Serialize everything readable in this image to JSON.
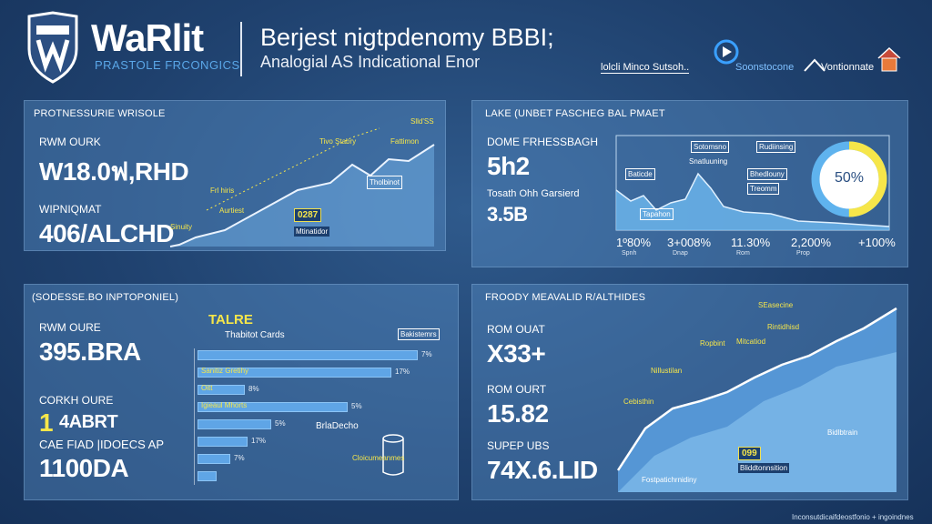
{
  "header": {
    "brand_name": "WaRlit",
    "brand_tagline": "PRASTOLE FRCONGICS",
    "title": "Berjest nigtpdenomy BBBI;",
    "subtitle": "Analogial AS Indicational Enor",
    "partners": [
      "lolcli Minco Sutsoh..",
      "Soonstocone",
      "Vontionnate"
    ]
  },
  "panel1": {
    "title": "PROTNESSURIE WRISOLE",
    "label1": "RWM OURK",
    "value1": "W18.0ฟ,RHD",
    "label2": "WIPNIQMAT",
    "value2": "406/ALCHD",
    "annotations": [
      "Slld'SS",
      "Fattimon",
      "Tivo Stabry",
      "Tholbinot",
      "Frl hiris",
      "Aurtiest",
      "Sinuity",
      "Mtinatidor"
    ],
    "highlight": "0287"
  },
  "panel2": {
    "title": "LAKE (UNBET FASCHEG BAL PMAET",
    "label1": "DOME FRHESSBAGH",
    "value1": "5h2",
    "label2": "Tosath Ohh Garsierd",
    "value2": "3.5B",
    "annotations": [
      "Baticde",
      "Tapahon",
      "Sotomsno",
      "Rudiinsing",
      "Bhedlouny",
      "Treomm",
      "Snatluuning"
    ],
    "donut_label": "50%",
    "donut_percent": 50,
    "axis_labels": [
      "1º80%",
      "3+008%",
      "11.30%",
      "2,200%",
      "+100%"
    ],
    "axis_sub": [
      "Spnh",
      "Dnap",
      "Rom",
      "Prop"
    ]
  },
  "panel3": {
    "title": "(SODESSE.BO INPTOPONIEL)",
    "label1": "RWM OURE",
    "value1": "395.BRA",
    "label2": "CORKH OURE",
    "value2": "1",
    "value2b": "4ABRT",
    "label3": "CAE FIAD |IDOECS AP",
    "value3": "1100DA",
    "chart_title": "TALRE",
    "chart_subtitle": "Thabitot Cards",
    "legend": "Bakistemrs",
    "bar_rows": [
      {
        "num": "1",
        "label": "",
        "value": "7%",
        "value_num": 100
      },
      {
        "num": "",
        "label": "Sanitiz Gretihy",
        "value": "17%",
        "value_num": 88
      },
      {
        "num": "2",
        "label": "Oitt",
        "value": "8%",
        "value_num": 21
      },
      {
        "num": "3",
        "label": "Igieaul Mhorts",
        "value": "5%",
        "value_num": 68
      },
      {
        "num": "3",
        "label": "",
        "value": "5%",
        "value_num": 33
      },
      {
        "num": "4",
        "label": "",
        "value": "17%",
        "value_num": 22
      },
      {
        "num": "5",
        "label": "",
        "value": "7%",
        "value_num": 14
      },
      {
        "num": "6",
        "label": "",
        "value": "",
        "value_num": 8
      }
    ],
    "side_label": "BrlaDecho",
    "cyl_label": "Cloicumeanmes"
  },
  "panel4": {
    "title": "FROODY MEAVALID R/ALTHIDES",
    "label1": "ROM OUAT",
    "value1": "X33+",
    "label2": "ROM OURT",
    "value2": "15.82",
    "label3": "SUPEP UBS",
    "value3": "74X.6.LID",
    "annotations": [
      "SEasecine",
      "Rintidhisd",
      "Mitcatiod",
      "Ropbint",
      "Nillustilan",
      "Cebisthin",
      "Bidlbtrain",
      "Bliddtonnsition",
      "Fostpatichrnidiny"
    ],
    "highlight": "099"
  },
  "footer": {
    "note": "Inconsutdicaifdeostfonio + ingoindnes"
  },
  "colors": {
    "accent_yellow": "#f6e64a",
    "panel": "#4f81b8",
    "line": "#e8f2ff",
    "area": "#6fb6f0"
  }
}
